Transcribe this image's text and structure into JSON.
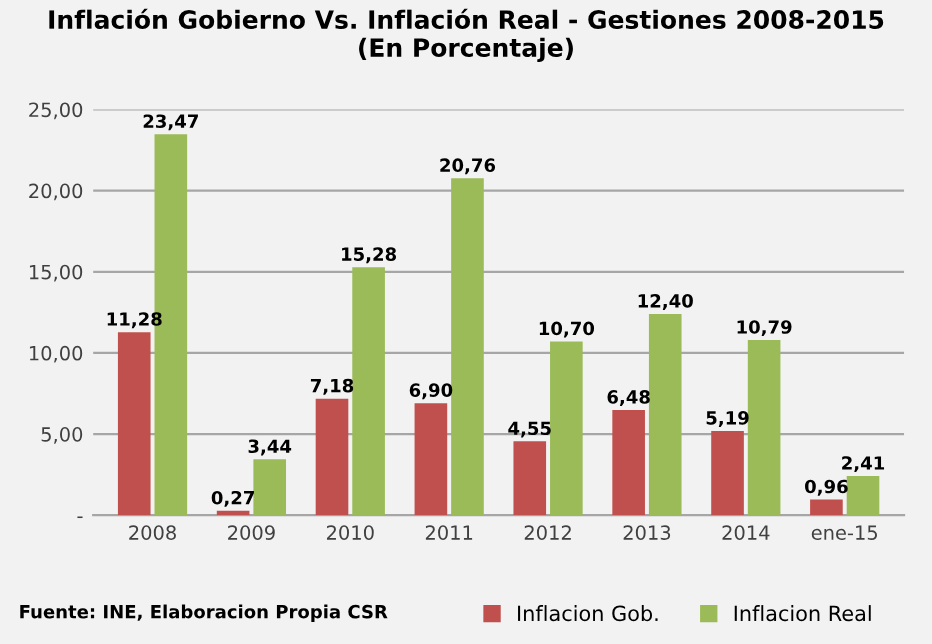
{
  "chart_data": {
    "type": "bar",
    "title": "Inflación Gobierno Vs. Inflación Real - Gestiones 2008-2015\n(En Porcentaje)",
    "categories": [
      "2008",
      "2009",
      "2010",
      "2011",
      "2012",
      "2013",
      "2014",
      "ene-15"
    ],
    "series": [
      {
        "name": "Inflacion Gob.",
        "color": "#c0504d",
        "values": [
          11.28,
          0.27,
          7.18,
          6.9,
          4.55,
          6.48,
          5.19,
          0.96
        ],
        "value_labels": [
          "11,28",
          "0,27",
          "7,18",
          "6,90",
          "4,55",
          "6,48",
          "5,19",
          "0,96"
        ]
      },
      {
        "name": "Inflacion Real",
        "color": "#9bbb59",
        "values": [
          23.47,
          3.44,
          15.28,
          20.76,
          10.7,
          12.4,
          10.79,
          2.41
        ],
        "value_labels": [
          "23,47",
          "3,44",
          "15,28",
          "20,76",
          "10,70",
          "12,40",
          "10,79",
          "2,41"
        ]
      }
    ],
    "ylim": [
      0,
      25
    ],
    "yticks": [
      {
        "value": 0,
        "label": "-"
      },
      {
        "value": 5,
        "label": "5,00"
      },
      {
        "value": 10,
        "label": "10,00"
      },
      {
        "value": 15,
        "label": "15,00"
      },
      {
        "value": 20,
        "label": "20,00"
      },
      {
        "value": 25,
        "label": "25,00"
      }
    ],
    "grid": "y",
    "legend": "bottom",
    "annotations": [
      "Fuente: INE, Elaboracion Propia CSR"
    ]
  }
}
